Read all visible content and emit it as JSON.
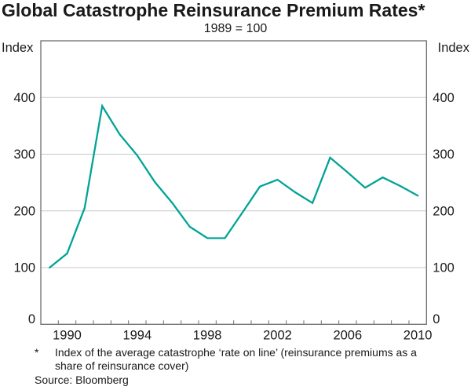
{
  "page": {
    "title": "Global Catastrophe Reinsurance Premium Rates*",
    "subtitle": "1989 = 100"
  },
  "chart_data": {
    "type": "line",
    "title": "Global Catastrophe Reinsurance Premium Rates*",
    "subtitle": "1989 = 100",
    "axis_label_left": "Index",
    "axis_label_right": "Index",
    "x": [
      1989,
      1990,
      1991,
      1992,
      1993,
      1994,
      1995,
      1996,
      1997,
      1998,
      1999,
      2000,
      2001,
      2002,
      2003,
      2004,
      2005,
      2006,
      2007,
      2008,
      2009,
      2010
    ],
    "series": [
      {
        "name": "Global catastrophe reinsurance premium rate index",
        "values": [
          100,
          125,
          205,
          385,
          335,
          298,
          251,
          214,
          172,
          152,
          152,
          197,
          243,
          255,
          233,
          214,
          294,
          268,
          241,
          259,
          244,
          227
        ]
      }
    ],
    "ylim": [
      0,
      500
    ],
    "y_ticks": [
      0,
      100,
      200,
      300,
      400
    ],
    "x_tick_labels": [
      "1990",
      "1994",
      "1998",
      "2002",
      "2006",
      "2010"
    ],
    "grid": true,
    "legend": "none",
    "line_color": "#00A396",
    "axis_color": "#6e6e6e",
    "grid_color": "#c8c8c8",
    "text_color": "#1a1a1a"
  },
  "footer": {
    "footnote_marker": "*",
    "footnote_lines": [
      "Index of the average catastrophe ‘rate on line’ (reinsurance premiums as a",
      "share of reinsurance cover)"
    ],
    "source": "Source: Bloomberg"
  }
}
